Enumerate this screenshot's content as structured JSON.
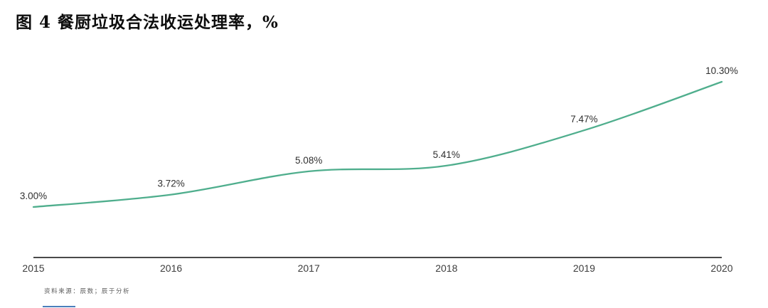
{
  "page": {
    "title": "图 4 餐厨垃圾合法收运处理率，%",
    "source_note": "资料来源：辰数；辰于分析"
  },
  "colors": {
    "line": "#4fae8d",
    "axis": "#4a4a4a",
    "tick_label": "#3d3d3d",
    "data_label": "#303030",
    "title": "#0d0d0d",
    "note": "#5a5a5a",
    "edge_line_blue": "#4a7ebb"
  },
  "chart_data": {
    "type": "line",
    "title": "图 4 餐厨垃圾合法收运处理率，%",
    "x": [
      "2015",
      "2016",
      "2017",
      "2018",
      "2019",
      "2020"
    ],
    "values": [
      3.0,
      3.72,
      5.08,
      5.41,
      7.47,
      10.3
    ],
    "data_labels": [
      "3.00%",
      "3.72%",
      "5.08%",
      "5.41%",
      "7.47%",
      "10.30%"
    ],
    "xlabel": "",
    "ylabel": "",
    "unit": "%",
    "ylim": [
      2.5,
      11
    ],
    "grid": false,
    "legend": "none",
    "smooth": true,
    "show_point_labels": true,
    "y_axis_visible": false,
    "x_axis_visible": true
  }
}
